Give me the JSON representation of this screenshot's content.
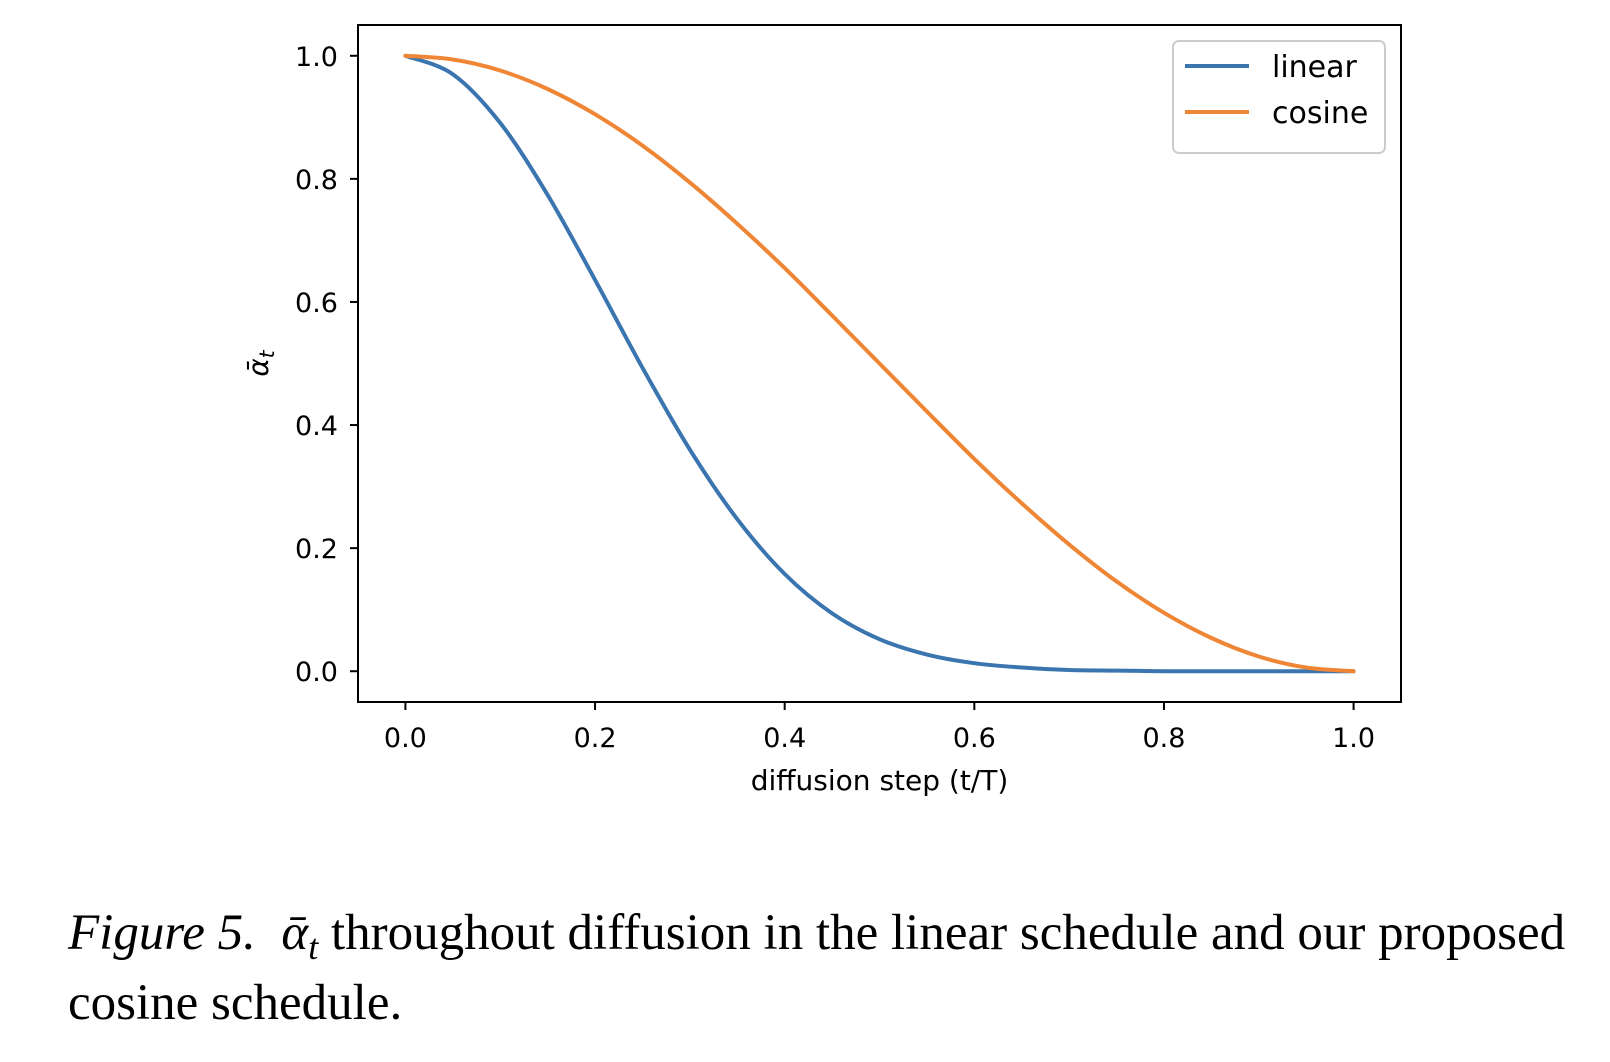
{
  "chart_data": {
    "type": "line",
    "xlabel": "diffusion step (t/T)",
    "ylabel_symbol": "ᾱ",
    "ylabel_subscript": "t",
    "xlim": [
      -0.05,
      1.05
    ],
    "ylim": [
      -0.05,
      1.05
    ],
    "xticks": [
      0.0,
      0.2,
      0.4,
      0.6,
      0.8,
      1.0
    ],
    "yticks": [
      0.0,
      0.2,
      0.4,
      0.6,
      0.8,
      1.0
    ],
    "x_tick_labels": [
      "0.0",
      "0.2",
      "0.4",
      "0.6",
      "0.8",
      "1.0"
    ],
    "y_tick_labels": [
      "0.0",
      "0.2",
      "0.4",
      "0.6",
      "0.8",
      "1.0"
    ],
    "grid": false,
    "legend_position": "top-right",
    "x": [
      0.0,
      0.05,
      0.1,
      0.15,
      0.2,
      0.25,
      0.3,
      0.35,
      0.4,
      0.45,
      0.5,
      0.55,
      0.6,
      0.65,
      0.7,
      0.75,
      0.8,
      0.85,
      0.9,
      0.95,
      1.0
    ],
    "series": [
      {
        "name": "linear",
        "color": "#3b75af",
        "values": [
          1.0,
          0.97,
          0.891,
          0.774,
          0.636,
          0.493,
          0.36,
          0.247,
          0.158,
          0.094,
          0.052,
          0.027,
          0.013,
          0.006,
          0.002,
          0.001,
          0.0,
          0.0,
          0.0,
          0.0,
          0.0
        ]
      },
      {
        "name": "cosine",
        "color": "#ef8636",
        "values": [
          1.0,
          0.994,
          0.976,
          0.946,
          0.905,
          0.854,
          0.794,
          0.727,
          0.655,
          0.578,
          0.5,
          0.422,
          0.345,
          0.273,
          0.206,
          0.146,
          0.095,
          0.054,
          0.024,
          0.006,
          0.0
        ]
      }
    ]
  },
  "caption": {
    "figure_label": "Figure 5.",
    "symbol": "ᾱ",
    "symbol_subscript": "t",
    "text": "throughout diffusion in the linear schedule and our proposed cosine schedule."
  }
}
